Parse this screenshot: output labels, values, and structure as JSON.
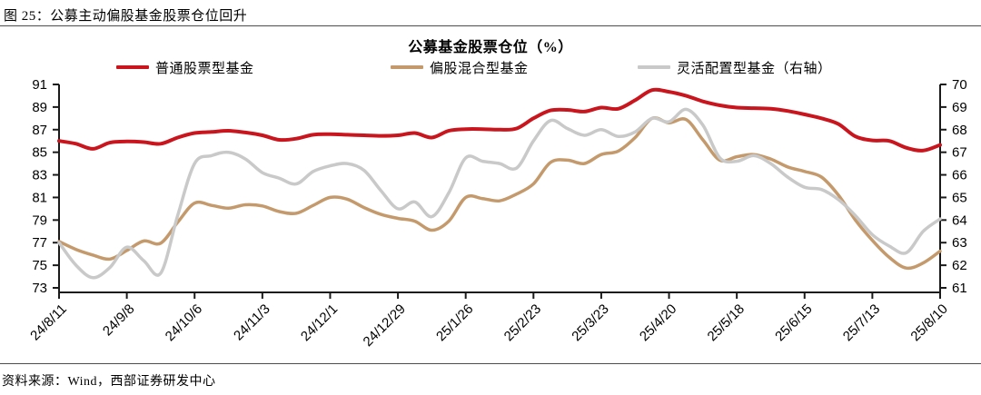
{
  "figure": {
    "caption": "图 25：公募主动偏股基金股票仓位回升",
    "source": "资料来源：Wind，西部证券研发中心"
  },
  "chart_data": {
    "type": "line",
    "title": "公募基金股票仓位（%）",
    "grid": false,
    "legend_position": "top",
    "x_tick_labels": [
      "24/8/11",
      "24/9/8",
      "24/10/6",
      "24/11/3",
      "24/12/1",
      "24/12/29",
      "25/1/26",
      "25/2/23",
      "25/3/23",
      "25/4/20",
      "25/5/18",
      "25/6/15",
      "25/7/13",
      "25/8/10"
    ],
    "x_tick_every": 4,
    "x": [
      "24/8/11",
      "24/8/18",
      "24/8/25",
      "24/9/1",
      "24/9/8",
      "24/9/15",
      "24/9/22",
      "24/9/29",
      "24/10/6",
      "24/10/13",
      "24/10/20",
      "24/10/27",
      "24/11/3",
      "24/11/10",
      "24/11/17",
      "24/11/24",
      "24/12/1",
      "24/12/8",
      "24/12/15",
      "24/12/22",
      "24/12/29",
      "25/1/5",
      "25/1/12",
      "25/1/19",
      "25/1/26",
      "25/2/2",
      "25/2/9",
      "25/2/16",
      "25/2/23",
      "25/3/2",
      "25/3/9",
      "25/3/16",
      "25/3/23",
      "25/3/30",
      "25/4/6",
      "25/4/13",
      "25/4/20",
      "25/4/27",
      "25/5/4",
      "25/5/11",
      "25/5/18",
      "25/5/25",
      "25/6/1",
      "25/6/8",
      "25/6/15",
      "25/6/22",
      "25/6/29",
      "25/7/6",
      "25/7/13",
      "25/7/20",
      "25/7/27",
      "25/8/3",
      "25/8/10"
    ],
    "left_axis": {
      "min": 73,
      "max": 91,
      "ticks": [
        91,
        89,
        87,
        85,
        83,
        81,
        79,
        77,
        75,
        73
      ]
    },
    "right_axis": {
      "min": 61,
      "max": 70,
      "ticks": [
        70,
        69,
        68,
        67,
        66,
        65,
        64,
        63,
        62,
        61
      ]
    },
    "series": [
      {
        "name": "普通股票型基金",
        "axis": "left",
        "color": "#C9161E",
        "width": 4,
        "values": [
          86.0,
          85.75,
          85.3,
          85.85,
          85.95,
          85.9,
          85.75,
          86.3,
          86.7,
          86.8,
          86.9,
          86.75,
          86.5,
          86.1,
          86.2,
          86.55,
          86.6,
          86.55,
          86.5,
          86.45,
          86.5,
          86.7,
          86.3,
          86.9,
          87.05,
          87.05,
          87.0,
          87.1,
          88.0,
          88.7,
          88.75,
          88.6,
          88.95,
          88.85,
          89.6,
          90.5,
          90.35,
          90.0,
          89.5,
          89.15,
          88.95,
          88.9,
          88.85,
          88.65,
          88.35,
          88.0,
          87.5,
          86.4,
          86.05,
          86.0,
          85.4,
          85.15,
          85.65
        ]
      },
      {
        "name": "偏股混合型基金",
        "axis": "left",
        "color": "#C49A6C",
        "width": 3.5,
        "values": [
          77.1,
          76.4,
          75.9,
          75.55,
          76.3,
          77.15,
          76.95,
          78.8,
          80.5,
          80.3,
          80.05,
          80.35,
          80.25,
          79.75,
          79.6,
          80.3,
          81.0,
          80.85,
          80.1,
          79.5,
          79.15,
          78.9,
          78.1,
          78.9,
          81.0,
          80.9,
          80.7,
          81.3,
          82.2,
          84.1,
          84.3,
          84.0,
          84.8,
          85.1,
          86.3,
          88.0,
          87.6,
          87.9,
          86.1,
          84.3,
          84.6,
          84.8,
          84.4,
          83.7,
          83.3,
          82.8,
          81.2,
          79.0,
          77.2,
          75.7,
          74.75,
          75.2,
          76.25
        ]
      },
      {
        "name": "灵活配置型基金（右轴）",
        "axis": "right",
        "color": "#C9C9C9",
        "width": 3.5,
        "values": [
          63.0,
          62.0,
          61.45,
          61.9,
          62.8,
          62.2,
          61.65,
          64.2,
          66.5,
          66.85,
          67.0,
          66.7,
          66.1,
          65.85,
          65.6,
          66.15,
          66.4,
          66.5,
          66.2,
          65.3,
          64.5,
          64.8,
          64.15,
          65.2,
          66.75,
          66.6,
          66.5,
          66.3,
          67.5,
          68.4,
          68.05,
          67.75,
          68.0,
          67.7,
          67.9,
          68.5,
          68.35,
          68.9,
          68.2,
          66.75,
          66.6,
          66.85,
          66.5,
          65.9,
          65.45,
          65.35,
          64.9,
          64.2,
          63.35,
          62.85,
          62.55,
          63.5,
          64.05
        ]
      }
    ]
  }
}
